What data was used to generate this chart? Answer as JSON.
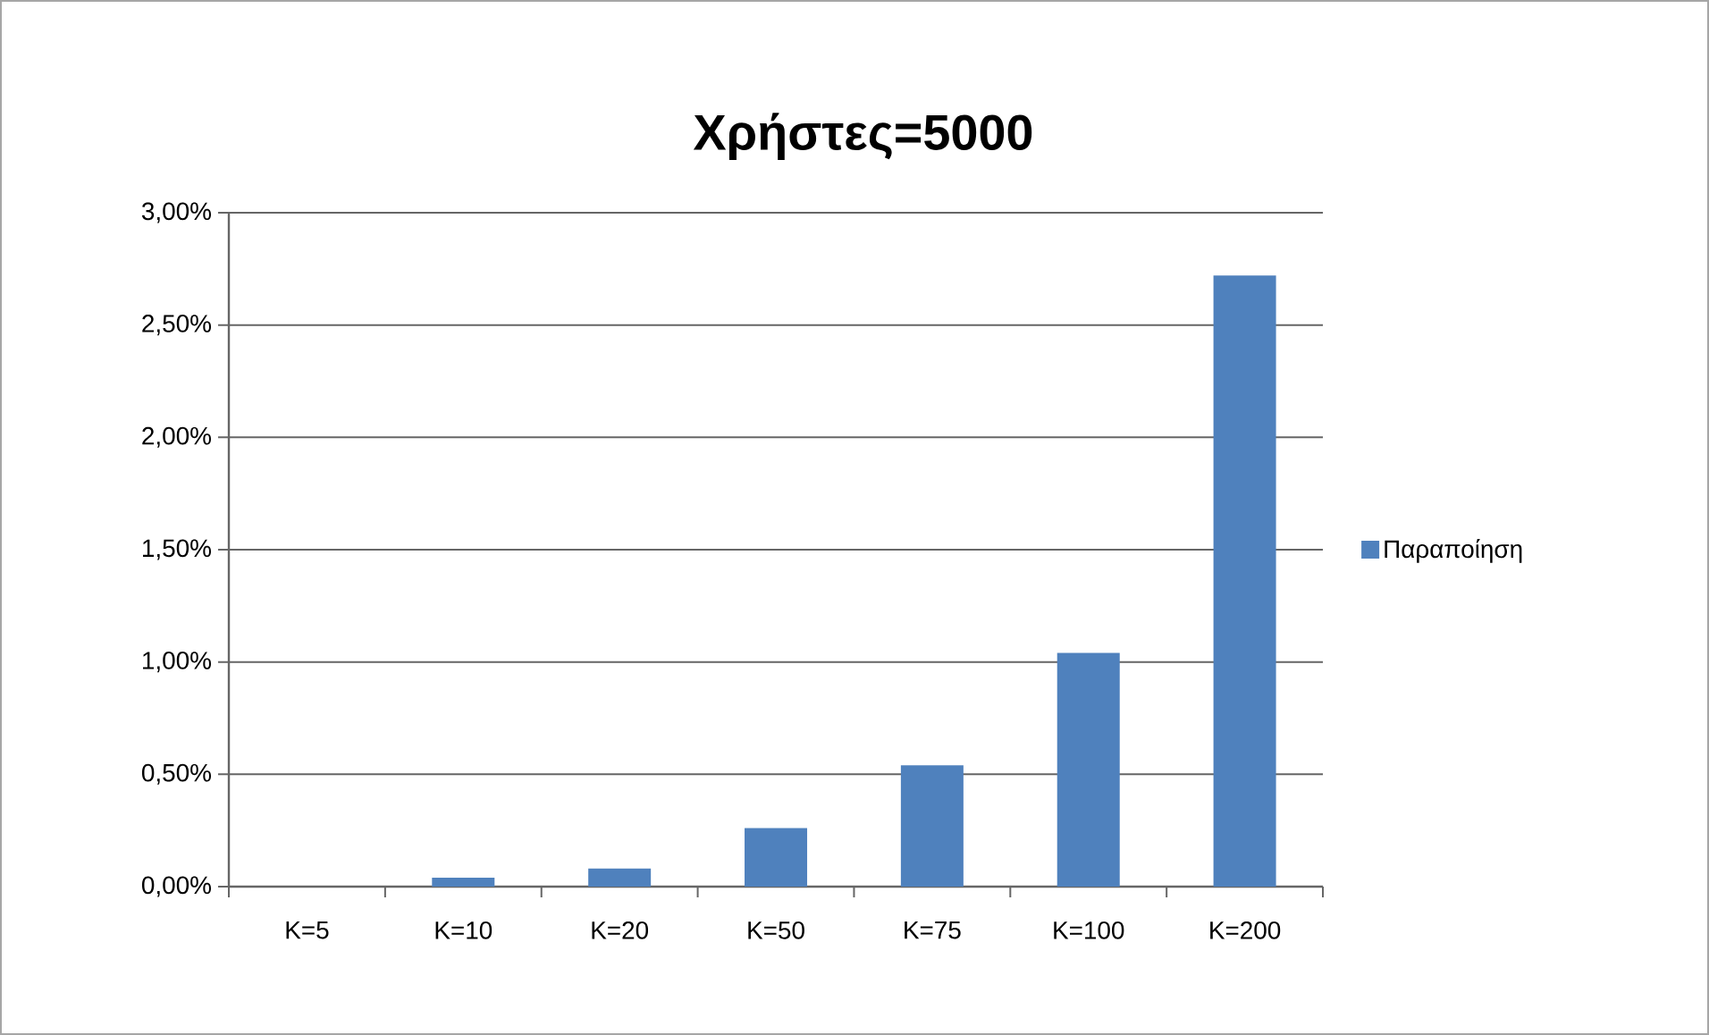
{
  "chart_data": {
    "type": "bar",
    "title": "Χρήστες=5000",
    "categories": [
      "K=5",
      "K=10",
      "K=20",
      "K=50",
      "K=75",
      "K=100",
      "K=200"
    ],
    "series": [
      {
        "name": "Παραποίηση",
        "color": "#4f81bd",
        "values": [
          0,
          0.04,
          0.08,
          0.26,
          0.54,
          1.04,
          2.72
        ]
      }
    ],
    "ylim": [
      0,
      3
    ],
    "yticks": [
      {
        "value": 0,
        "label": "0,00%"
      },
      {
        "value": 0.5,
        "label": "0,50%"
      },
      {
        "value": 1,
        "label": "1,00%"
      },
      {
        "value": 1.5,
        "label": "1,50%"
      },
      {
        "value": 2,
        "label": "2,00%"
      },
      {
        "value": 2.5,
        "label": "2,50%"
      },
      {
        "value": 3,
        "label": "3,00%"
      }
    ],
    "grid": "y",
    "legend": "right"
  }
}
